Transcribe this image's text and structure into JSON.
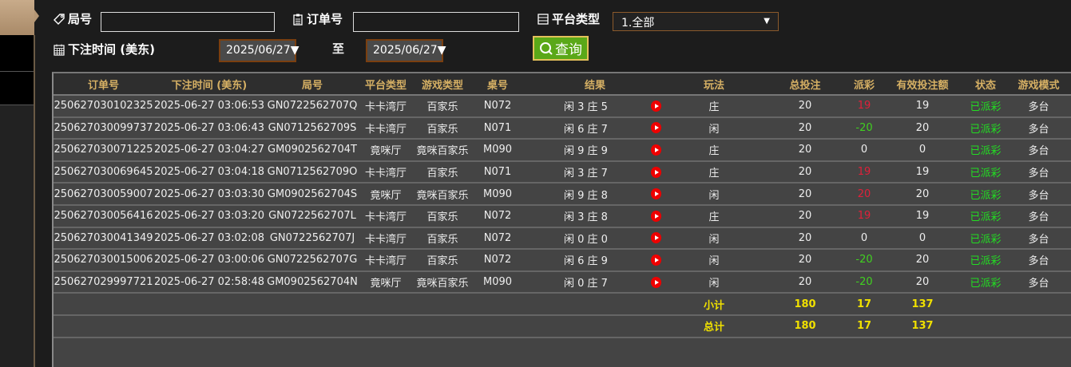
{
  "filters": {
    "round_label": "局号",
    "round_value": "",
    "order_label": "订单号",
    "order_value": "",
    "platform_label": "平台类型",
    "platform_selected": "1.全部",
    "time_label": "下注时间 (美东)",
    "date_from": "2025/06/27",
    "to_label": "至",
    "date_to": "2025/06/27",
    "query_label": "查询"
  },
  "colors": {
    "positive_payout": "#e0203a",
    "negative_payout": "#40d020",
    "status": "#22dd22",
    "totals": "#f0e000",
    "header": "#d6b064"
  },
  "table": {
    "headers": [
      "订单号",
      "下注时间 (美东)",
      "局号",
      "平台类型",
      "游戏类型",
      "桌号",
      "结果",
      "玩法",
      "总投注",
      "派彩",
      "有效投注额",
      "状态",
      "游戏模式"
    ],
    "rows": [
      [
        "250627030102325",
        "2025-06-27 03:06:53",
        "GN0722562707Q",
        "卡卡湾厅",
        "百家乐",
        "N072",
        "闲 3 庄 5",
        "庄",
        "20",
        "19",
        "19",
        "已派彩",
        "多台"
      ],
      [
        "250627030099737",
        "2025-06-27 03:06:43",
        "GN0712562709S",
        "卡卡湾厅",
        "百家乐",
        "N071",
        "闲 6 庄 7",
        "闲",
        "20",
        "-20",
        "20",
        "已派彩",
        "多台"
      ],
      [
        "250627030071225",
        "2025-06-27 03:04:27",
        "GM0902562704T",
        "竟咪厅",
        "竟咪百家乐",
        "M090",
        "闲 9 庄 9",
        "庄",
        "20",
        "0",
        "0",
        "已派彩",
        "多台"
      ],
      [
        "250627030069645",
        "2025-06-27 03:04:18",
        "GN0712562709O",
        "卡卡湾厅",
        "百家乐",
        "N071",
        "闲 3 庄 7",
        "庄",
        "20",
        "19",
        "19",
        "已派彩",
        "多台"
      ],
      [
        "250627030059007",
        "2025-06-27 03:03:30",
        "GM0902562704S",
        "竟咪厅",
        "竟咪百家乐",
        "M090",
        "闲 9 庄 8",
        "闲",
        "20",
        "20",
        "20",
        "已派彩",
        "多台"
      ],
      [
        "250627030056416",
        "2025-06-27 03:03:20",
        "GN0722562707L",
        "卡卡湾厅",
        "百家乐",
        "N072",
        "闲 3 庄 8",
        "庄",
        "20",
        "19",
        "19",
        "已派彩",
        "多台"
      ],
      [
        "250627030041349",
        "2025-06-27 03:02:08",
        "GN0722562707J",
        "卡卡湾厅",
        "百家乐",
        "N072",
        "闲 0 庄 0",
        "闲",
        "20",
        "0",
        "0",
        "已派彩",
        "多台"
      ],
      [
        "250627030015006",
        "2025-06-27 03:00:06",
        "GN0722562707G",
        "卡卡湾厅",
        "百家乐",
        "N072",
        "闲 6 庄 9",
        "闲",
        "20",
        "-20",
        "20",
        "已派彩",
        "多台"
      ],
      [
        "250627029997721",
        "2025-06-27 02:58:48",
        "GM0902562704N",
        "竟咪厅",
        "竟咪百家乐",
        "M090",
        "闲 0 庄 7",
        "闲",
        "20",
        "-20",
        "20",
        "已派彩",
        "多台"
      ]
    ],
    "subtotal": {
      "label": "小计",
      "total_bet": "180",
      "payout": "17",
      "valid_bet": "137"
    },
    "total": {
      "label": "总计",
      "total_bet": "180",
      "payout": "17",
      "valid_bet": "137"
    }
  }
}
